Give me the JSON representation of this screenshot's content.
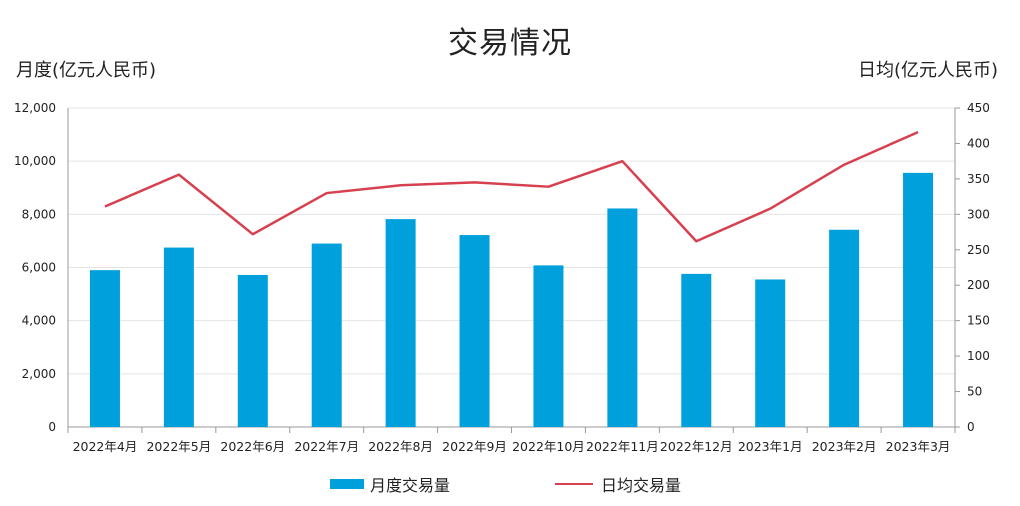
{
  "chart_data": {
    "type": "bar",
    "title": "交易情况",
    "ylabel": "月度(亿元人民币)",
    "y2label": "日均(亿元人民币)",
    "categories": [
      "2022年4月",
      "2022年5月",
      "2022年6月",
      "2022年7月",
      "2022年8月",
      "2022年9月",
      "2022年10月",
      "2022年11月",
      "2022年12月",
      "2023年1月",
      "2023年2月",
      "2023年3月"
    ],
    "series": [
      {
        "name": "月度交易量",
        "type": "bar",
        "axis": "left",
        "color": "#00a0dc",
        "values": [
          5900,
          6750,
          5720,
          6900,
          7820,
          7220,
          6080,
          8220,
          5760,
          5550,
          7420,
          9560
        ]
      },
      {
        "name": "日均交易量",
        "type": "line",
        "axis": "right",
        "color": "#d6404f",
        "values": [
          311,
          356,
          272,
          330,
          341,
          345,
          339,
          375,
          262,
          308,
          370,
          416
        ]
      }
    ],
    "ylim": [
      0,
      12000
    ],
    "y2lim": [
      0,
      450
    ],
    "yticks": [
      "0",
      "2,000",
      "4,000",
      "6,000",
      "8,000",
      "10,000",
      "12,000"
    ],
    "y2ticks": [
      "0",
      "50",
      "100",
      "150",
      "200",
      "250",
      "300",
      "350",
      "400",
      "450"
    ],
    "grid": true,
    "legend_position": "bottom"
  }
}
